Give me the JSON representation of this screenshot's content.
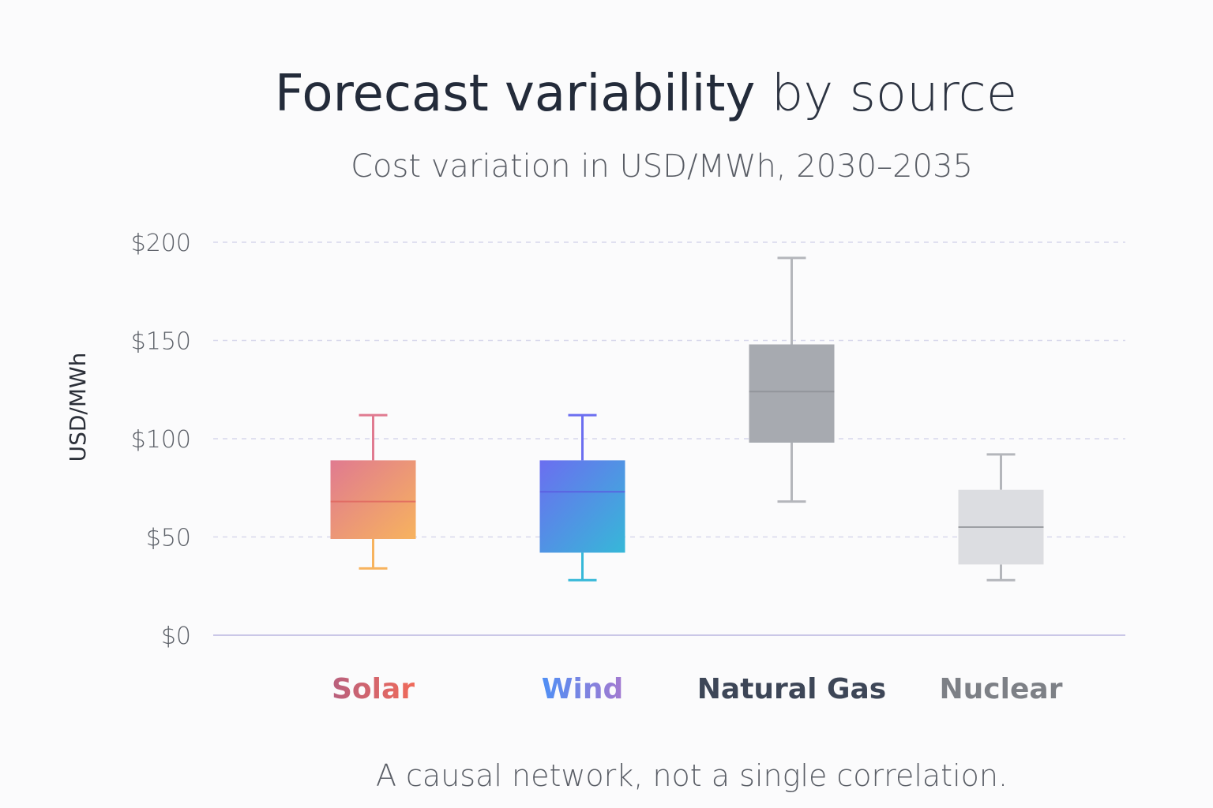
{
  "chart_data": {
    "type": "box",
    "title": "Forecast variability by source",
    "title_parts": [
      "Forecast variability",
      " by source"
    ],
    "subtitle": "Cost variation in USD/MWh, 2030–2035",
    "xlabel": "",
    "ylabel": "USD/MWh",
    "ylim": [
      0,
      200
    ],
    "yticks": [
      0,
      50,
      100,
      150,
      200
    ],
    "ytick_labels": [
      "$0",
      "$50",
      "$100",
      "$150",
      "$200"
    ],
    "grid": true,
    "categories": [
      "Solar",
      "Wind",
      "Natural Gas",
      "Nuclear"
    ],
    "series": [
      {
        "category": "Solar",
        "min": 34,
        "q1": 49,
        "median": 68,
        "q3": 89,
        "max": 112,
        "colors": [
          "#e07a90",
          "#f7b35e"
        ]
      },
      {
        "category": "Wind",
        "min": 28,
        "q1": 42,
        "median": 73,
        "q3": 89,
        "max": 112,
        "colors": [
          "#6b6ef0",
          "#36b8d8"
        ]
      },
      {
        "category": "Natural Gas",
        "min": 68,
        "q1": 98,
        "median": 124,
        "q3": 148,
        "max": 192,
        "colors": [
          "#a7aab0",
          "#a7aab0"
        ]
      },
      {
        "category": "Nuclear",
        "min": 28,
        "q1": 36,
        "median": 55,
        "q3": 74,
        "max": 92,
        "colors": [
          "#dcdde1",
          "#dcdde1"
        ]
      }
    ],
    "label_colors": [
      [
        "#b8607e",
        "#f06a5a"
      ],
      [
        "#4f8ff5",
        "#a47ad0"
      ],
      [
        "#3d4657",
        "#3d4657"
      ],
      [
        "#7d8086",
        "#7d8086"
      ]
    ],
    "footnote": "A causal network, not a single correlation."
  }
}
